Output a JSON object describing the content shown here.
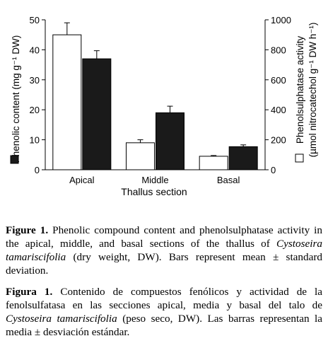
{
  "chart_data": {
    "type": "bar",
    "xlabel": "Thallus section",
    "categories": [
      "Apical",
      "Middle",
      "Basal"
    ],
    "y_left": {
      "label": "Phenolic content (mg g⁻¹ DW)",
      "ylim": [
        0,
        50
      ],
      "ticks": [
        0,
        10,
        20,
        30,
        40,
        50
      ]
    },
    "y_right": {
      "label_line1": "Phenolsulphatase activity",
      "label_line2": "(µmol nitrocatechol g⁻¹ DW h⁻¹)",
      "ylim": [
        0,
        1000
      ],
      "ticks": [
        0,
        200,
        400,
        600,
        800,
        1000
      ]
    },
    "series": [
      {
        "axis": "right",
        "fill": "#ffffff",
        "values": [
          900,
          180,
          90
        ],
        "errors": [
          80,
          20,
          5
        ]
      },
      {
        "axis": "left",
        "fill": "#1a1a1a",
        "values": [
          37,
          19,
          7.7
        ],
        "errors": [
          2.7,
          2.2,
          0.6
        ]
      }
    ]
  },
  "caption_en": {
    "label": "Figure 1.",
    "text1": " Phenolic compound content and phenolsulphatase activity in the apical, middle, and basal sections of the thallus of ",
    "species": "Cystoseira tamariscifolia",
    "text2": " (dry weight, DW). Bars represent mean ± standard deviation."
  },
  "caption_es": {
    "label": "Figura 1.",
    "text1": " Contenido de compuestos fenólicos y actividad de la fenolsulfatasa en las secciones apical, media y basal del talo de ",
    "species": "Cystoseira tamariscifolia",
    "text2": " (peso seco, DW). Las barras representan la media ± desviación estándar."
  }
}
